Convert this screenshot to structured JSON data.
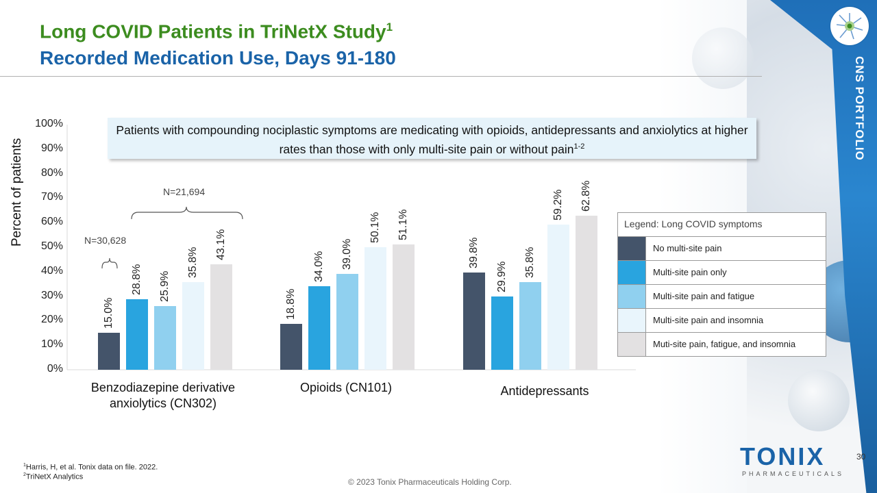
{
  "header": {
    "title_line1": "Long COVID Patients in TriNetX Study",
    "title_line1_sup": "1",
    "title_line2": "Recorded Medication Use, Days 91-180"
  },
  "sidebar": {
    "label": "CNS PORTFOLIO"
  },
  "callout": {
    "text": "Patients with compounding  nociplastic symptoms are medicating with opioids, antidepressants and anxiolytics at higher rates than those with only multi-site pain or without pain",
    "sup": "1-2"
  },
  "annotations": {
    "n_group": "N=21,694",
    "n_single": "N=30,628"
  },
  "legend": {
    "title": "Legend: Long COVID symptoms"
  },
  "chart_data": {
    "type": "bar",
    "ylabel": "Percent of patients",
    "ylim": [
      0,
      100
    ],
    "yticks": [
      "0%",
      "10%",
      "20%",
      "30%",
      "40%",
      "50%",
      "60%",
      "70%",
      "80%",
      "90%",
      "100%"
    ],
    "categories": [
      "Benzodiazepine derivative anxiolytics (CN302)",
      "Opioids (CN101)",
      "Antidepressants"
    ],
    "category_display": [
      {
        "line1": "Benzodiazepine  derivative",
        "line2": "anxiolytics (CN302)"
      },
      {
        "line1": "Opioids (CN101)",
        "line2": ""
      },
      {
        "line1": "Antidepressants",
        "line2": ""
      }
    ],
    "series": [
      {
        "name": "No multi-site pain",
        "color": "#44546a",
        "values": [
          15.0,
          18.8,
          39.8
        ],
        "labels": [
          "15.0%",
          "18.8%",
          "39.8%"
        ]
      },
      {
        "name": "Multi-site pain only",
        "color": "#29a4df",
        "values": [
          28.8,
          34.0,
          29.9
        ],
        "labels": [
          "28.8%",
          "34.0%",
          "29.9%"
        ]
      },
      {
        "name": "Multi-site pain and fatigue",
        "color": "#90d0ef",
        "values": [
          25.9,
          39.0,
          35.8
        ],
        "labels": [
          "25.9%",
          "39.0%",
          "35.8%"
        ]
      },
      {
        "name": "Multi-site pain and insomnia",
        "color": "#e9f5fc",
        "values": [
          35.8,
          50.1,
          59.2
        ],
        "labels": [
          "35.8%",
          "50.1%",
          "59.2%"
        ]
      },
      {
        "name": "Muti-site pain, fatigue, and insomnia",
        "color": "#e3e1e2",
        "values": [
          43.1,
          51.1,
          62.8
        ],
        "labels": [
          "43.1%",
          "51.1%",
          "62.8%"
        ]
      }
    ]
  },
  "footer": {
    "footnote1_sup": "1",
    "footnote1": "Harris, H, et al. Tonix data on file. 2022.",
    "footnote2_sup": "2",
    "footnote2": "TriNetX Analytics",
    "copyright": "© 2023 Tonix Pharmaceuticals Holding Corp.",
    "page_number": "30",
    "brand": "TONIX",
    "brand_sub": "PHARMACEUTICALS"
  }
}
